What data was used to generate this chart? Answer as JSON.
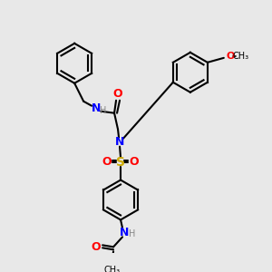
{
  "bg_color": "#e8e8e8",
  "atom_colors": {
    "C": "#000000",
    "N": "#0000ff",
    "O": "#ff0000",
    "S": "#ccaa00",
    "H": "#888888"
  },
  "bond_color": "#000000",
  "figsize": [
    3.0,
    3.0
  ],
  "dpi": 100
}
